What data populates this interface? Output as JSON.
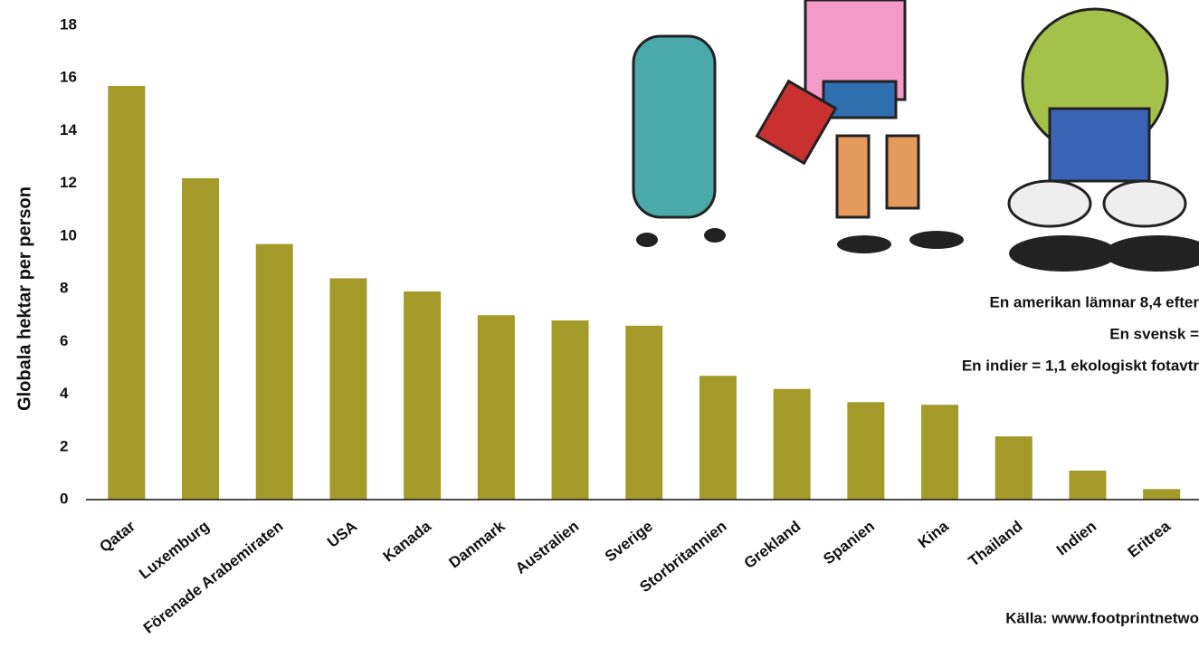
{
  "chart_data": {
    "type": "bar",
    "y_label": "Globala hektar per person",
    "categories": [
      "Qatar",
      "Luxemburg",
      "Förenade Arabemiraten",
      "USA",
      "Kanada",
      "Danmark",
      "Australien",
      "Sverige",
      "Storbritannien",
      "Grekland",
      "Spanien",
      "Kina",
      "Thailand",
      "Indien",
      "Eritrea"
    ],
    "values": [
      15.7,
      12.2,
      9.7,
      8.4,
      7.9,
      7.0,
      6.8,
      6.6,
      4.7,
      4.2,
      3.7,
      3.6,
      2.4,
      1.1,
      0.4
    ],
    "color": "#a39a2a",
    "ylim": [
      0,
      18
    ],
    "yticks": [
      0,
      2,
      4,
      6,
      8,
      10,
      12,
      14,
      16,
      18
    ],
    "grid": false,
    "annotations": [
      "En amerikan lämnar 8,4 efter",
      "En svensk =",
      "En indier = 1,1 ekologiskt fotavtr"
    ],
    "source": "Källa: www.footprintnetwo"
  }
}
